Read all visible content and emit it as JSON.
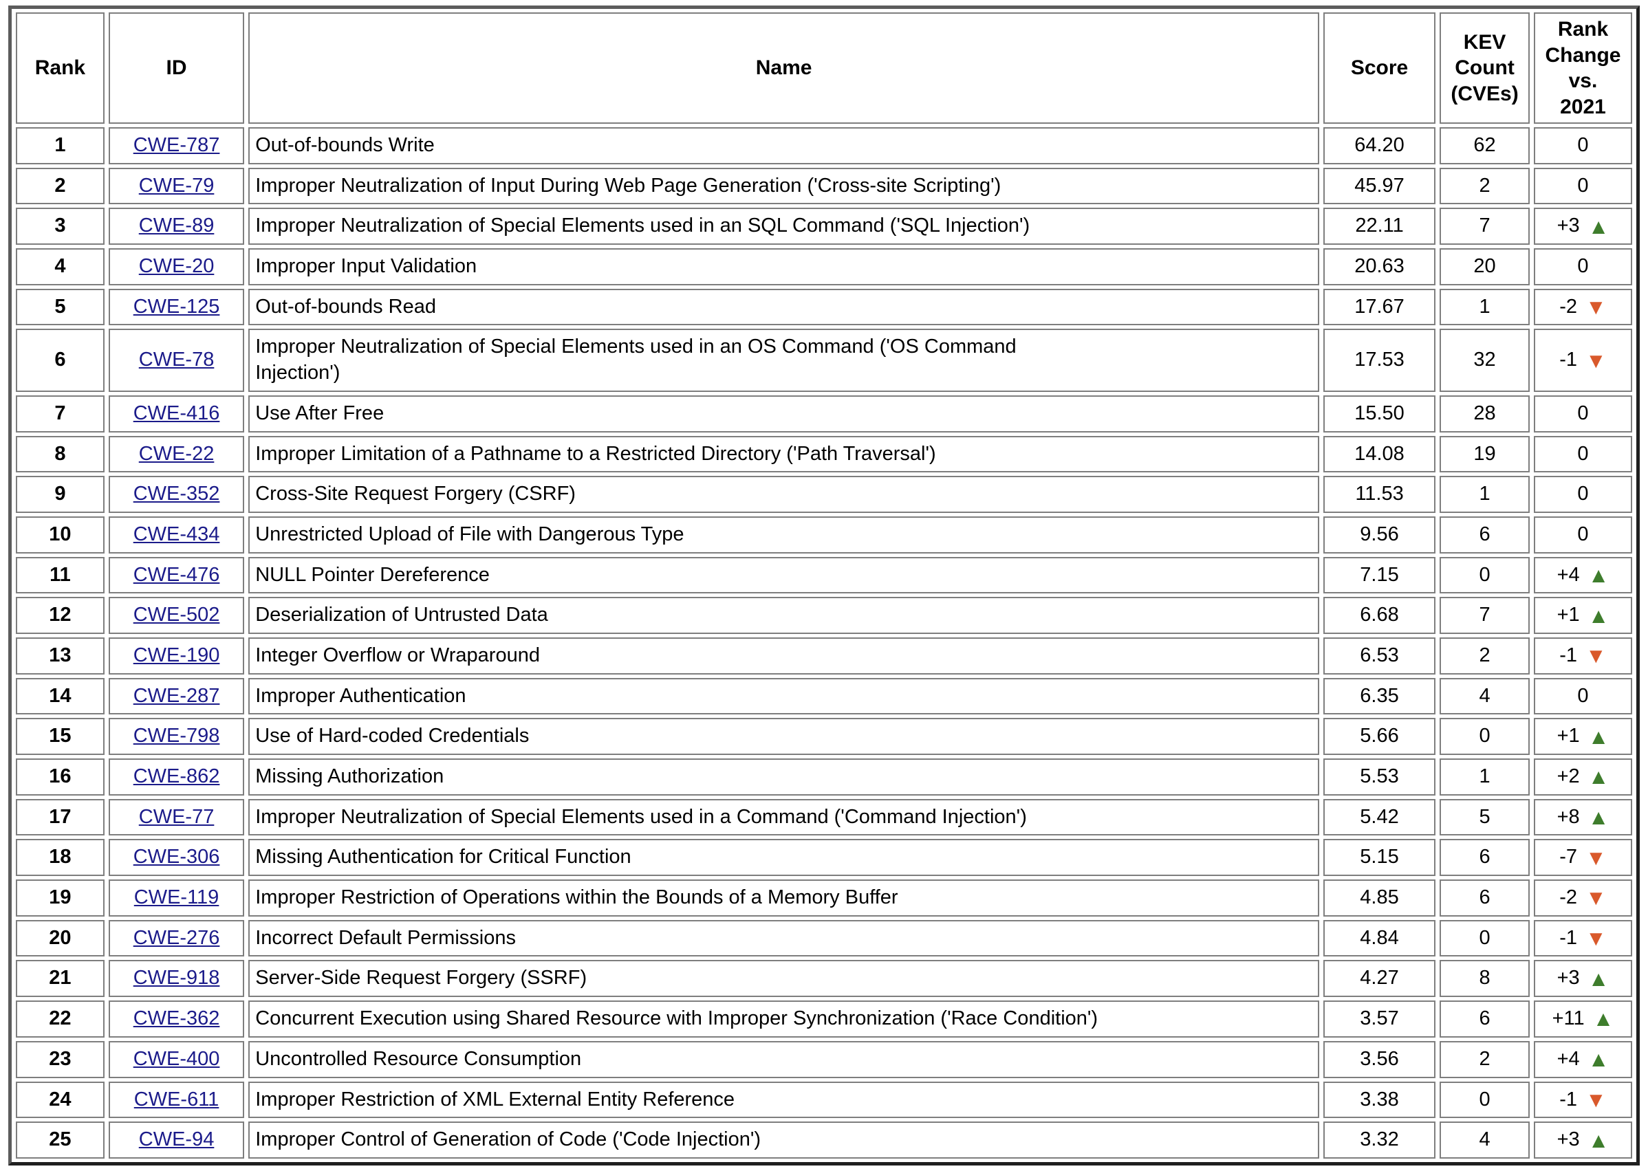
{
  "colors": {
    "link": "#1b1b8a",
    "up_arrow": "#3e7d2c",
    "down_arrow": "#d9592b",
    "outer_border": "#3a3a3a",
    "cell_border": "#7e7e7e"
  },
  "icons": {
    "up": "▲",
    "down": "▼"
  },
  "table": {
    "columns": [
      {
        "key": "rank",
        "label": "Rank"
      },
      {
        "key": "id",
        "label": "ID"
      },
      {
        "key": "name",
        "label": "Name"
      },
      {
        "key": "score",
        "label": "Score"
      },
      {
        "key": "kev",
        "label": "KEV\nCount\n(CVEs)"
      },
      {
        "key": "change",
        "label": "Rank\nChange\nvs.\n2021"
      }
    ],
    "rows": [
      {
        "rank": "1",
        "id": "CWE-787",
        "name": "Out-of-bounds Write",
        "score": "64.20",
        "kev": "62",
        "change": "0",
        "trend": "none"
      },
      {
        "rank": "2",
        "id": "CWE-79",
        "name": "Improper Neutralization of Input During Web Page Generation ('Cross-site Scripting')",
        "score": "45.97",
        "kev": "2",
        "change": "0",
        "trend": "none"
      },
      {
        "rank": "3",
        "id": "CWE-89",
        "name": "Improper Neutralization of Special Elements used in an SQL Command ('SQL Injection')",
        "score": "22.11",
        "kev": "7",
        "change": "+3",
        "trend": "up"
      },
      {
        "rank": "4",
        "id": "CWE-20",
        "name": "Improper Input Validation",
        "score": "20.63",
        "kev": "20",
        "change": "0",
        "trend": "none"
      },
      {
        "rank": "5",
        "id": "CWE-125",
        "name": "Out-of-bounds Read",
        "score": "17.67",
        "kev": "1",
        "change": "-2",
        "trend": "down"
      },
      {
        "rank": "6",
        "id": "CWE-78",
        "name": "Improper Neutralization of Special Elements used in an OS Command ('OS Command\nInjection')",
        "score": "17.53",
        "kev": "32",
        "change": "-1",
        "trend": "down"
      },
      {
        "rank": "7",
        "id": "CWE-416",
        "name": "Use After Free",
        "score": "15.50",
        "kev": "28",
        "change": "0",
        "trend": "none"
      },
      {
        "rank": "8",
        "id": "CWE-22",
        "name": "Improper Limitation of a Pathname to a Restricted Directory ('Path Traversal')",
        "score": "14.08",
        "kev": "19",
        "change": "0",
        "trend": "none"
      },
      {
        "rank": "9",
        "id": "CWE-352",
        "name": "Cross-Site Request Forgery (CSRF)",
        "score": "11.53",
        "kev": "1",
        "change": "0",
        "trend": "none"
      },
      {
        "rank": "10",
        "id": "CWE-434",
        "name": "Unrestricted Upload of File with Dangerous Type",
        "score": "9.56",
        "kev": "6",
        "change": "0",
        "trend": "none"
      },
      {
        "rank": "11",
        "id": "CWE-476",
        "name": "NULL Pointer Dereference",
        "score": "7.15",
        "kev": "0",
        "change": "+4",
        "trend": "up"
      },
      {
        "rank": "12",
        "id": "CWE-502",
        "name": "Deserialization of Untrusted Data",
        "score": "6.68",
        "kev": "7",
        "change": "+1",
        "trend": "up"
      },
      {
        "rank": "13",
        "id": "CWE-190",
        "name": "Integer Overflow or Wraparound",
        "score": "6.53",
        "kev": "2",
        "change": "-1",
        "trend": "down"
      },
      {
        "rank": "14",
        "id": "CWE-287",
        "name": "Improper Authentication",
        "score": "6.35",
        "kev": "4",
        "change": "0",
        "trend": "none"
      },
      {
        "rank": "15",
        "id": "CWE-798",
        "name": "Use of Hard-coded Credentials",
        "score": "5.66",
        "kev": "0",
        "change": "+1",
        "trend": "up"
      },
      {
        "rank": "16",
        "id": "CWE-862",
        "name": "Missing Authorization",
        "score": "5.53",
        "kev": "1",
        "change": "+2",
        "trend": "up"
      },
      {
        "rank": "17",
        "id": "CWE-77",
        "name": "Improper Neutralization of Special Elements used in a Command ('Command Injection')",
        "score": "5.42",
        "kev": "5",
        "change": "+8",
        "trend": "up"
      },
      {
        "rank": "18",
        "id": "CWE-306",
        "name": "Missing Authentication for Critical Function",
        "score": "5.15",
        "kev": "6",
        "change": "-7",
        "trend": "down"
      },
      {
        "rank": "19",
        "id": "CWE-119",
        "name": "Improper Restriction of Operations within the Bounds of a Memory Buffer",
        "score": "4.85",
        "kev": "6",
        "change": "-2",
        "trend": "down"
      },
      {
        "rank": "20",
        "id": "CWE-276",
        "name": "Incorrect Default Permissions",
        "score": "4.84",
        "kev": "0",
        "change": "-1",
        "trend": "down"
      },
      {
        "rank": "21",
        "id": "CWE-918",
        "name": "Server-Side Request Forgery (SSRF)",
        "score": "4.27",
        "kev": "8",
        "change": "+3",
        "trend": "up"
      },
      {
        "rank": "22",
        "id": "CWE-362",
        "name": "Concurrent Execution using Shared Resource with Improper Synchronization ('Race Condition')",
        "score": "3.57",
        "kev": "6",
        "change": "+11",
        "trend": "up"
      },
      {
        "rank": "23",
        "id": "CWE-400",
        "name": "Uncontrolled Resource Consumption",
        "score": "3.56",
        "kev": "2",
        "change": "+4",
        "trend": "up"
      },
      {
        "rank": "24",
        "id": "CWE-611",
        "name": "Improper Restriction of XML External Entity Reference",
        "score": "3.38",
        "kev": "0",
        "change": "-1",
        "trend": "down"
      },
      {
        "rank": "25",
        "id": "CWE-94",
        "name": "Improper Control of Generation of Code ('Code Injection')",
        "score": "3.32",
        "kev": "4",
        "change": "+3",
        "trend": "up"
      }
    ]
  }
}
